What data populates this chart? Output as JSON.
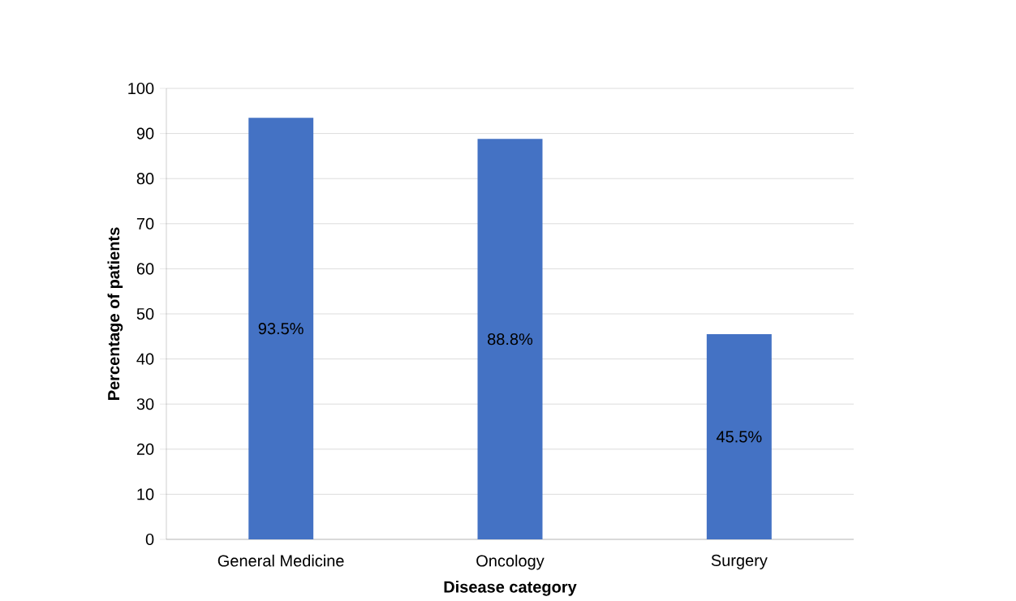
{
  "chart_data": {
    "type": "bar",
    "xlabel": "Disease category",
    "ylabel": "Percentage of patients",
    "categories": [
      "General Medicine",
      "Oncology",
      "Surgery"
    ],
    "values": [
      93.5,
      88.8,
      45.5
    ],
    "value_labels": [
      "93.5%",
      "88.8%",
      "45.5%"
    ],
    "color": "#4472c4",
    "ylim": [
      0,
      100
    ],
    "yticks": [
      0,
      10,
      20,
      30,
      40,
      50,
      60,
      70,
      80,
      90,
      100
    ],
    "grid": "y"
  }
}
